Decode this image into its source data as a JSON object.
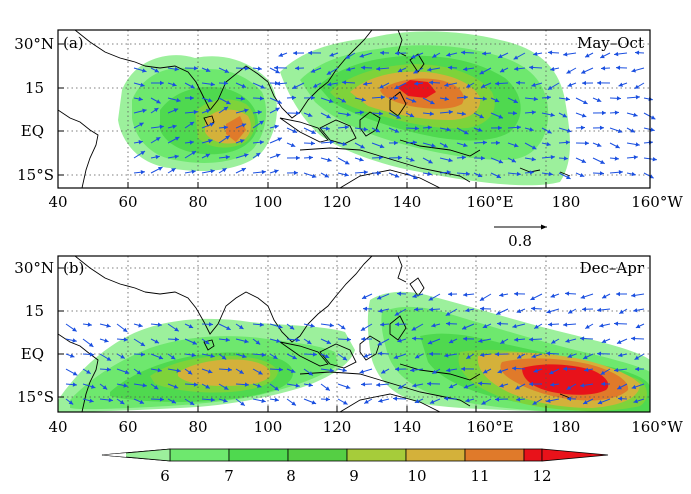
{
  "colors": {
    "c6": "#9cf09c",
    "c7": "#6ee86e",
    "c8": "#4fd94f",
    "c9": "#7ed33a",
    "c10": "#d4b13a",
    "c11": "#e07a2a",
    "c12": "#e8121a",
    "vector": "#1a4fe0",
    "coast": "#000000",
    "grid": "#555555"
  },
  "panels": [
    {
      "label": "(a)",
      "season": "May–Oct",
      "x_ticks": [
        "40",
        "60",
        "80",
        "100",
        "120",
        "140",
        "160°E",
        "180",
        "160°W"
      ],
      "y_ticks": [
        "30°N",
        "15",
        "EQ",
        "15°S"
      ],
      "reference_vector": "0.8"
    },
    {
      "label": "(b)",
      "season": "Dec–Apr",
      "x_ticks": [
        "40",
        "60",
        "80",
        "100",
        "120",
        "140",
        "160°E",
        "180",
        "160°W"
      ],
      "y_ticks": [
        "30°N",
        "15",
        "EQ",
        "15°S"
      ]
    }
  ],
  "colorbar": {
    "levels": [
      "6",
      "7",
      "8",
      "9",
      "10",
      "11",
      "12"
    ]
  }
}
